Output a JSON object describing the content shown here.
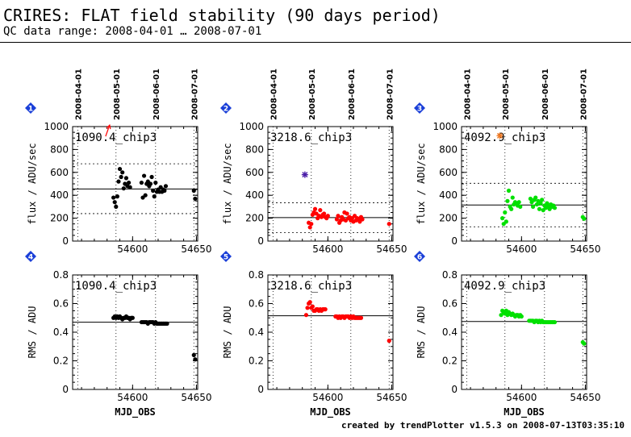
{
  "header": {
    "title": "CRIRES: FLAT field stability (90 days period)",
    "subtitle": "QC data range: 2008-04-01 … 2008-07-01"
  },
  "footer": "created by trendPlotter v1.5.3 on 2008-07-13T03:35:10",
  "colors": {
    "black": "#000000",
    "red": "#ff0000",
    "green": "#00e000",
    "blue": "#1a3fd8",
    "purple": "#4b1ea8",
    "orange": "#f07820"
  },
  "chart_data": [
    {
      "type": "scatter",
      "badge": "1",
      "row": 0,
      "col": 0,
      "label": "1090.4_chip3",
      "ylabel": "flux / ADU/sec",
      "xlabel": "",
      "xlim": [
        54553,
        54651
      ],
      "ylim": [
        0,
        1000
      ],
      "yticks": [
        0,
        200,
        400,
        600,
        800,
        1000
      ],
      "xticks": [
        54600,
        54650
      ],
      "date_ticks": [
        {
          "x": 54557,
          "label": "2008-04-01"
        },
        {
          "x": 54587,
          "label": "2008-05-01"
        },
        {
          "x": 54618,
          "label": "2008-06-01"
        },
        {
          "x": 54648,
          "label": "2008-07-01"
        }
      ],
      "mean": 455,
      "limits": [
        240,
        675
      ],
      "color": "#000000",
      "points": [
        [
          54585,
          380
        ],
        [
          54586,
          340
        ],
        [
          54587,
          300
        ],
        [
          54588,
          390
        ],
        [
          54589,
          520
        ],
        [
          54590,
          630
        ],
        [
          54591,
          560
        ],
        [
          54592,
          600
        ],
        [
          54593,
          460
        ],
        [
          54594,
          500
        ],
        [
          54595,
          550
        ],
        [
          54596,
          480
        ],
        [
          54597,
          510
        ],
        [
          54598,
          470
        ],
        [
          54607,
          510
        ],
        [
          54608,
          380
        ],
        [
          54609,
          570
        ],
        [
          54610,
          400
        ],
        [
          54611,
          500
        ],
        [
          54612,
          520
        ],
        [
          54613,
          480
        ],
        [
          54614,
          500
        ],
        [
          54615,
          560
        ],
        [
          54616,
          440
        ],
        [
          54617,
          390
        ],
        [
          54618,
          510
        ],
        [
          54619,
          430
        ],
        [
          54620,
          450
        ],
        [
          54621,
          430
        ],
        [
          54622,
          470
        ],
        [
          54623,
          430
        ],
        [
          54624,
          450
        ],
        [
          54625,
          440
        ],
        [
          54626,
          480
        ],
        [
          54648,
          440
        ],
        [
          54649,
          370
        ]
      ],
      "outliers": [
        {
          "x": 54582,
          "y": 985,
          "color": "#ff0000",
          "marker": "arrow"
        }
      ]
    },
    {
      "type": "scatter",
      "badge": "2",
      "row": 0,
      "col": 1,
      "label": "3218.6_chip3",
      "ylabel": "flux / ADU/sec",
      "xlabel": "",
      "xlim": [
        54553,
        54651
      ],
      "ylim": [
        0,
        1000
      ],
      "yticks": [
        0,
        200,
        400,
        600,
        800,
        1000
      ],
      "xticks": [
        54600,
        54650
      ],
      "date_ticks": [
        {
          "x": 54557,
          "label": "2008-04-01"
        },
        {
          "x": 54587,
          "label": "2008-05-01"
        },
        {
          "x": 54618,
          "label": "2008-06-01"
        },
        {
          "x": 54648,
          "label": "2008-07-01"
        }
      ],
      "mean": 205,
      "limits": [
        75,
        335
      ],
      "color": "#ff0000",
      "points": [
        [
          54585,
          160
        ],
        [
          54586,
          120
        ],
        [
          54587,
          150
        ],
        [
          54588,
          230
        ],
        [
          54589,
          250
        ],
        [
          54590,
          280
        ],
        [
          54591,
          240
        ],
        [
          54592,
          200
        ],
        [
          54593,
          220
        ],
        [
          54594,
          270
        ],
        [
          54595,
          210
        ],
        [
          54596,
          230
        ],
        [
          54597,
          240
        ],
        [
          54598,
          210
        ],
        [
          54599,
          200
        ],
        [
          54600,
          220
        ],
        [
          54607,
          190
        ],
        [
          54608,
          220
        ],
        [
          54609,
          160
        ],
        [
          54610,
          180
        ],
        [
          54611,
          210
        ],
        [
          54612,
          190
        ],
        [
          54613,
          250
        ],
        [
          54614,
          180
        ],
        [
          54615,
          240
        ],
        [
          54616,
          200
        ],
        [
          54617,
          210
        ],
        [
          54618,
          180
        ],
        [
          54619,
          200
        ],
        [
          54620,
          170
        ],
        [
          54621,
          220
        ],
        [
          54622,
          180
        ],
        [
          54623,
          200
        ],
        [
          54624,
          190
        ],
        [
          54625,
          170
        ],
        [
          54626,
          210
        ],
        [
          54627,
          190
        ],
        [
          54648,
          150
        ]
      ],
      "outliers": [
        {
          "x": 54582,
          "y": 580,
          "color": "#4b1ea8",
          "marker": "star"
        }
      ]
    },
    {
      "type": "scatter",
      "badge": "3",
      "row": 0,
      "col": 2,
      "label": "4092.9_chip3",
      "ylabel": "flux / ADU/sec",
      "xlabel": "",
      "xlim": [
        54553,
        54651
      ],
      "ylim": [
        0,
        1000
      ],
      "yticks": [
        0,
        200,
        400,
        600,
        800,
        1000
      ],
      "xticks": [
        54600,
        54650
      ],
      "date_ticks": [
        {
          "x": 54557,
          "label": "2008-04-01"
        },
        {
          "x": 54587,
          "label": "2008-05-01"
        },
        {
          "x": 54618,
          "label": "2008-06-01"
        },
        {
          "x": 54648,
          "label": "2008-07-01"
        }
      ],
      "mean": 315,
      "limits": [
        125,
        505
      ],
      "color": "#00e000",
      "points": [
        [
          54585,
          200
        ],
        [
          54586,
          150
        ],
        [
          54587,
          250
        ],
        [
          54588,
          170
        ],
        [
          54589,
          350
        ],
        [
          54590,
          440
        ],
        [
          54591,
          300
        ],
        [
          54592,
          280
        ],
        [
          54593,
          380
        ],
        [
          54594,
          320
        ],
        [
          54595,
          340
        ],
        [
          54596,
          330
        ],
        [
          54597,
          310
        ],
        [
          54598,
          340
        ],
        [
          54599,
          300
        ],
        [
          54607,
          370
        ],
        [
          54608,
          340
        ],
        [
          54609,
          300
        ],
        [
          54610,
          360
        ],
        [
          54611,
          380
        ],
        [
          54612,
          320
        ],
        [
          54613,
          350
        ],
        [
          54614,
          280
        ],
        [
          54615,
          330
        ],
        [
          54616,
          360
        ],
        [
          54617,
          270
        ],
        [
          54618,
          310
        ],
        [
          54619,
          290
        ],
        [
          54620,
          330
        ],
        [
          54621,
          300
        ],
        [
          54622,
          280
        ],
        [
          54623,
          320
        ],
        [
          54624,
          300
        ],
        [
          54625,
          310
        ],
        [
          54626,
          290
        ],
        [
          54648,
          210
        ],
        [
          54649,
          195
        ]
      ],
      "outliers": [
        {
          "x": 54583,
          "y": 920,
          "color": "#f07820",
          "marker": "star"
        }
      ]
    },
    {
      "type": "scatter",
      "badge": "4",
      "row": 1,
      "col": 0,
      "label": "1090.4_chip3",
      "ylabel": "RMS / ADU",
      "xlabel": "MJD_OBS",
      "xlim": [
        54553,
        54651
      ],
      "ylim": [
        0,
        0.8
      ],
      "yticks": [
        0,
        0.2,
        0.4,
        0.6,
        0.8
      ],
      "xticks": [
        54600,
        54650
      ],
      "date_ticks": [
        {
          "x": 54557,
          "label": ""
        },
        {
          "x": 54587,
          "label": ""
        },
        {
          "x": 54618,
          "label": ""
        },
        {
          "x": 54648,
          "label": ""
        }
      ],
      "mean": 0.47,
      "limits": [],
      "color": "#000000",
      "points": [
        [
          54585,
          0.5
        ],
        [
          54586,
          0.51
        ],
        [
          54587,
          0.5
        ],
        [
          54588,
          0.51
        ],
        [
          54589,
          0.5
        ],
        [
          54590,
          0.51
        ],
        [
          54591,
          0.5
        ],
        [
          54592,
          0.49
        ],
        [
          54593,
          0.5
        ],
        [
          54594,
          0.5
        ],
        [
          54595,
          0.51
        ],
        [
          54596,
          0.5
        ],
        [
          54597,
          0.5
        ],
        [
          54598,
          0.49
        ],
        [
          54599,
          0.5
        ],
        [
          54600,
          0.5
        ],
        [
          54607,
          0.47
        ],
        [
          54608,
          0.47
        ],
        [
          54609,
          0.47
        ],
        [
          54610,
          0.47
        ],
        [
          54611,
          0.47
        ],
        [
          54612,
          0.46
        ],
        [
          54613,
          0.47
        ],
        [
          54614,
          0.47
        ],
        [
          54615,
          0.47
        ],
        [
          54616,
          0.47
        ],
        [
          54617,
          0.46
        ],
        [
          54618,
          0.47
        ],
        [
          54619,
          0.46
        ],
        [
          54620,
          0.46
        ],
        [
          54621,
          0.46
        ],
        [
          54622,
          0.46
        ],
        [
          54623,
          0.46
        ],
        [
          54624,
          0.46
        ],
        [
          54625,
          0.46
        ],
        [
          54626,
          0.46
        ],
        [
          54627,
          0.46
        ],
        [
          54648,
          0.24
        ],
        [
          54649,
          0.21
        ]
      ],
      "outliers": []
    },
    {
      "type": "scatter",
      "badge": "5",
      "row": 1,
      "col": 1,
      "label": "3218.6_chip3",
      "ylabel": "RMS / ADU",
      "xlabel": "MJD_OBS",
      "xlim": [
        54553,
        54651
      ],
      "ylim": [
        0,
        0.8
      ],
      "yticks": [
        0,
        0.2,
        0.4,
        0.6,
        0.8
      ],
      "xticks": [
        54600,
        54650
      ],
      "date_ticks": [
        {
          "x": 54557,
          "label": ""
        },
        {
          "x": 54587,
          "label": ""
        },
        {
          "x": 54618,
          "label": ""
        },
        {
          "x": 54648,
          "label": ""
        }
      ],
      "mean": 0.515,
      "limits": [],
      "color": "#ff0000",
      "points": [
        [
          54583,
          0.52
        ],
        [
          54584,
          0.57
        ],
        [
          54585,
          0.6
        ],
        [
          54586,
          0.61
        ],
        [
          54587,
          0.57
        ],
        [
          54588,
          0.58
        ],
        [
          54589,
          0.55
        ],
        [
          54590,
          0.55
        ],
        [
          54591,
          0.56
        ],
        [
          54592,
          0.56
        ],
        [
          54593,
          0.55
        ],
        [
          54594,
          0.56
        ],
        [
          54595,
          0.55
        ],
        [
          54596,
          0.56
        ],
        [
          54597,
          0.56
        ],
        [
          54598,
          0.56
        ],
        [
          54606,
          0.51
        ],
        [
          54607,
          0.51
        ],
        [
          54608,
          0.5
        ],
        [
          54609,
          0.51
        ],
        [
          54610,
          0.5
        ],
        [
          54611,
          0.51
        ],
        [
          54612,
          0.51
        ],
        [
          54613,
          0.5
        ],
        [
          54614,
          0.51
        ],
        [
          54615,
          0.51
        ],
        [
          54616,
          0.51
        ],
        [
          54617,
          0.5
        ],
        [
          54618,
          0.51
        ],
        [
          54619,
          0.5
        ],
        [
          54620,
          0.51
        ],
        [
          54621,
          0.5
        ],
        [
          54622,
          0.5
        ],
        [
          54623,
          0.5
        ],
        [
          54624,
          0.5
        ],
        [
          54625,
          0.5
        ],
        [
          54626,
          0.5
        ],
        [
          54648,
          0.34
        ]
      ],
      "outliers": []
    },
    {
      "type": "scatter",
      "badge": "6",
      "row": 1,
      "col": 2,
      "label": "4092.9_chip3",
      "ylabel": "RMS / ADU",
      "xlabel": "MJD_OBS",
      "xlim": [
        54553,
        54651
      ],
      "ylim": [
        0,
        0.8
      ],
      "yticks": [
        0,
        0.2,
        0.4,
        0.6,
        0.8
      ],
      "xticks": [
        54600,
        54650
      ],
      "date_ticks": [
        {
          "x": 54557,
          "label": ""
        },
        {
          "x": 54587,
          "label": ""
        },
        {
          "x": 54618,
          "label": ""
        },
        {
          "x": 54648,
          "label": ""
        }
      ],
      "mean": 0.475,
      "limits": [],
      "color": "#00e000",
      "points": [
        [
          54584,
          0.52
        ],
        [
          54585,
          0.55
        ],
        [
          54586,
          0.54
        ],
        [
          54587,
          0.53
        ],
        [
          54588,
          0.55
        ],
        [
          54589,
          0.52
        ],
        [
          54590,
          0.54
        ],
        [
          54591,
          0.53
        ],
        [
          54592,
          0.52
        ],
        [
          54593,
          0.53
        ],
        [
          54594,
          0.52
        ],
        [
          54595,
          0.51
        ],
        [
          54596,
          0.52
        ],
        [
          54597,
          0.52
        ],
        [
          54598,
          0.51
        ],
        [
          54599,
          0.52
        ],
        [
          54600,
          0.51
        ],
        [
          54606,
          0.48
        ],
        [
          54607,
          0.48
        ],
        [
          54608,
          0.48
        ],
        [
          54609,
          0.48
        ],
        [
          54610,
          0.47
        ],
        [
          54611,
          0.48
        ],
        [
          54612,
          0.48
        ],
        [
          54613,
          0.47
        ],
        [
          54614,
          0.48
        ],
        [
          54615,
          0.47
        ],
        [
          54616,
          0.48
        ],
        [
          54617,
          0.47
        ],
        [
          54618,
          0.47
        ],
        [
          54619,
          0.47
        ],
        [
          54620,
          0.47
        ],
        [
          54621,
          0.47
        ],
        [
          54622,
          0.47
        ],
        [
          54623,
          0.47
        ],
        [
          54624,
          0.47
        ],
        [
          54625,
          0.47
        ],
        [
          54626,
          0.47
        ],
        [
          54648,
          0.33
        ],
        [
          54649,
          0.32
        ]
      ],
      "outliers": []
    }
  ]
}
